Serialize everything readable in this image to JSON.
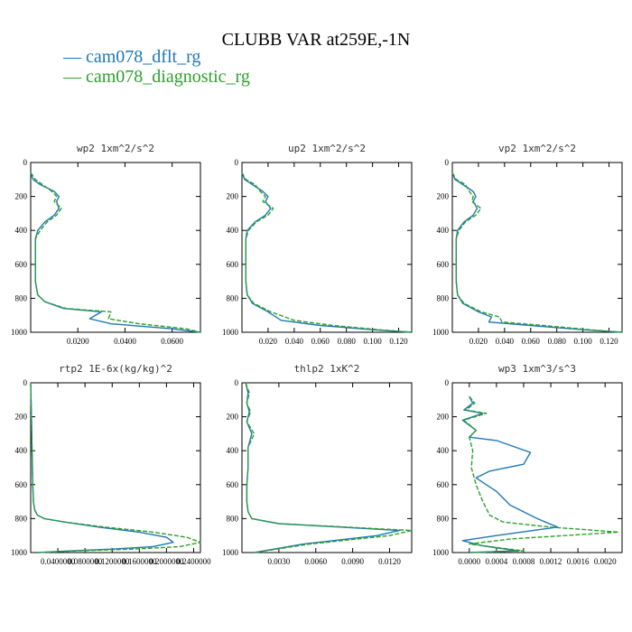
{
  "figure_title": "CLUBB VAR at259E,-1N",
  "colors": {
    "dflt": "#1f77b4",
    "diagnostic": "#2ca02c"
  },
  "legend": [
    {
      "name": "cam078_dflt_rg",
      "color": "#1f77b4",
      "style": "solid",
      "glyph": "—"
    },
    {
      "name": "cam078_diagnostic_rg",
      "color": "#2ca02c",
      "style": "dashed",
      "glyph": "—"
    }
  ],
  "chart_data": [
    {
      "type": "line",
      "title": "wp2   1xm^2/s^2",
      "xlim": [
        0,
        0.072
      ],
      "ylim": [
        1000,
        0
      ],
      "xticks": [
        0.02,
        0.04,
        0.06
      ],
      "xticklabels": [
        "0.0200",
        "0.0400",
        "0.0600"
      ],
      "yticks": [
        0,
        200,
        400,
        600,
        800,
        1000
      ],
      "series": [
        {
          "name": "cam078_dflt_rg",
          "x": [
            0,
            0.001,
            0.004,
            0.01,
            0.012,
            0.011,
            0.012,
            0.01,
            0.006,
            0.003,
            0.002,
            0.002,
            0.002,
            0.002,
            0.003,
            0.006,
            0.014,
            0.03,
            0.025,
            0.034,
            0.06,
            0.072
          ],
          "y": [
            60,
            100,
            130,
            170,
            200,
            230,
            270,
            310,
            350,
            400,
            450,
            500,
            600,
            700,
            780,
            820,
            860,
            880,
            920,
            950,
            980,
            1000
          ]
        },
        {
          "name": "cam078_diagnostic_rg",
          "x": [
            0,
            0.002,
            0.005,
            0.009,
            0.011,
            0.01,
            0.013,
            0.011,
            0.007,
            0.004,
            0.002,
            0.002,
            0.002,
            0.002,
            0.003,
            0.006,
            0.015,
            0.034,
            0.033,
            0.046,
            0.066,
            0.072
          ],
          "y": [
            60,
            100,
            130,
            170,
            200,
            230,
            270,
            310,
            350,
            400,
            450,
            500,
            600,
            700,
            780,
            820,
            860,
            880,
            920,
            950,
            980,
            1000
          ]
        }
      ]
    },
    {
      "type": "line",
      "title": "up2   1xm^2/s^2",
      "xlim": [
        0,
        0.13
      ],
      "ylim": [
        1000,
        0
      ],
      "xticks": [
        0.02,
        0.04,
        0.06,
        0.08,
        0.1,
        0.12
      ],
      "xticklabels": [
        "0.020",
        "0.040",
        "0.060",
        "0.080",
        "0.100",
        "0.120"
      ],
      "yticks": [
        0,
        200,
        400,
        600,
        800,
        1000
      ],
      "series": [
        {
          "name": "cam078_dflt_rg",
          "x": [
            0,
            0.002,
            0.008,
            0.016,
            0.02,
            0.018,
            0.022,
            0.018,
            0.01,
            0.004,
            0.003,
            0.003,
            0.003,
            0.003,
            0.004,
            0.008,
            0.02,
            0.03,
            0.06,
            0.1,
            0.13
          ],
          "y": [
            60,
            100,
            130,
            170,
            200,
            230,
            270,
            310,
            350,
            400,
            450,
            500,
            600,
            700,
            780,
            830,
            880,
            930,
            960,
            985,
            1000
          ]
        },
        {
          "name": "cam078_diagnostic_rg",
          "x": [
            0,
            0.003,
            0.01,
            0.014,
            0.018,
            0.016,
            0.024,
            0.02,
            0.011,
            0.005,
            0.003,
            0.003,
            0.003,
            0.003,
            0.004,
            0.009,
            0.022,
            0.04,
            0.07,
            0.105,
            0.13
          ],
          "y": [
            60,
            100,
            130,
            170,
            200,
            230,
            270,
            310,
            350,
            400,
            450,
            500,
            600,
            700,
            780,
            830,
            880,
            930,
            960,
            985,
            1000
          ]
        }
      ]
    },
    {
      "type": "line",
      "title": "vp2   1xm^2/s^2",
      "xlim": [
        0,
        0.13
      ],
      "ylim": [
        1000,
        0
      ],
      "xticks": [
        0.02,
        0.04,
        0.06,
        0.08,
        0.1,
        0.12
      ],
      "xticklabels": [
        "0.020",
        "0.040",
        "0.060",
        "0.080",
        "0.100",
        "0.120"
      ],
      "yticks": [
        0,
        200,
        400,
        600,
        800,
        1000
      ],
      "series": [
        {
          "name": "cam078_dflt_rg",
          "x": [
            0,
            0.002,
            0.008,
            0.016,
            0.018,
            0.016,
            0.019,
            0.016,
            0.009,
            0.004,
            0.003,
            0.003,
            0.003,
            0.003,
            0.004,
            0.008,
            0.02,
            0.03,
            0.028,
            0.06,
            0.1,
            0.13
          ],
          "y": [
            60,
            100,
            130,
            170,
            200,
            230,
            270,
            310,
            350,
            400,
            450,
            500,
            600,
            700,
            780,
            830,
            880,
            910,
            940,
            960,
            985,
            1000
          ]
        },
        {
          "name": "cam078_diagnostic_rg",
          "x": [
            0,
            0.003,
            0.01,
            0.013,
            0.016,
            0.015,
            0.022,
            0.018,
            0.01,
            0.005,
            0.003,
            0.003,
            0.003,
            0.003,
            0.004,
            0.009,
            0.022,
            0.036,
            0.038,
            0.07,
            0.105,
            0.13
          ],
          "y": [
            60,
            100,
            130,
            170,
            200,
            230,
            270,
            310,
            350,
            400,
            450,
            500,
            600,
            700,
            780,
            830,
            880,
            910,
            940,
            960,
            985,
            1000
          ]
        }
      ]
    },
    {
      "type": "line",
      "title": "rtp2   1E-6x(kg/kg)^2",
      "xlim": [
        0,
        0.25
      ],
      "ylim": [
        1000,
        0
      ],
      "xticks": [
        0.04,
        0.08,
        0.12,
        0.16,
        0.2,
        0.24
      ],
      "xticklabels": [
        "0.0400000",
        "0.0800000",
        "0.1200000",
        "0.1600000",
        "0.2000000",
        "0.2400000"
      ],
      "yticks": [
        0,
        200,
        400,
        600,
        800,
        1000
      ],
      "series": [
        {
          "name": "cam078_dflt_rg",
          "x": [
            0,
            0.001,
            0.002,
            0.003,
            0.004,
            0.006,
            0.01,
            0.02,
            0.05,
            0.1,
            0.16,
            0.2,
            0.21,
            0.18,
            0.12,
            0.06,
            0.01
          ],
          "y": [
            0,
            200,
            400,
            600,
            700,
            750,
            780,
            800,
            820,
            850,
            880,
            910,
            940,
            965,
            980,
            990,
            1000
          ]
        },
        {
          "name": "cam078_diagnostic_rg",
          "x": [
            0,
            0.001,
            0.002,
            0.003,
            0.004,
            0.006,
            0.01,
            0.02,
            0.05,
            0.11,
            0.18,
            0.23,
            0.25,
            0.22,
            0.15,
            0.07,
            0.01
          ],
          "y": [
            0,
            200,
            400,
            600,
            700,
            750,
            780,
            800,
            820,
            850,
            880,
            910,
            940,
            965,
            980,
            990,
            1000
          ]
        }
      ]
    },
    {
      "type": "line",
      "title": "thlp2   1xK^2",
      "xlim": [
        0,
        0.0138
      ],
      "ylim": [
        1000,
        0
      ],
      "xticks": [
        0.003,
        0.006,
        0.009,
        0.012
      ],
      "xticklabels": [
        "0.0030",
        "0.0060",
        "0.0090",
        "0.0120"
      ],
      "yticks": [
        0,
        200,
        400,
        600,
        800,
        1000
      ],
      "series": [
        {
          "name": "cam078_dflt_rg",
          "x": [
            0.0003,
            0.0005,
            0.0004,
            0.0006,
            0.0004,
            0.0008,
            0.0005,
            0.0005,
            0.0004,
            0.0004,
            0.0005,
            0.0008,
            0.003,
            0.008,
            0.0128,
            0.011,
            0.005,
            0.001
          ],
          "y": [
            0,
            60,
            120,
            170,
            230,
            300,
            380,
            500,
            600,
            700,
            760,
            800,
            830,
            850,
            870,
            900,
            950,
            1000
          ]
        },
        {
          "name": "cam078_diagnostic_rg",
          "x": [
            0.0003,
            0.0006,
            0.0004,
            0.0007,
            0.0004,
            0.001,
            0.0005,
            0.0005,
            0.0004,
            0.0004,
            0.0005,
            0.0008,
            0.003,
            0.0085,
            0.0138,
            0.012,
            0.0055,
            0.001
          ],
          "y": [
            0,
            60,
            120,
            170,
            230,
            300,
            380,
            500,
            600,
            700,
            760,
            800,
            830,
            850,
            870,
            900,
            950,
            1000
          ]
        }
      ]
    },
    {
      "type": "line",
      "title": "wp3   1xm^3/s^3",
      "xlim": [
        -0.00025,
        0.00225
      ],
      "ylim": [
        1000,
        0
      ],
      "xticks": [
        0,
        0.0004,
        0.0008,
        0.0012,
        0.0016,
        0.002
      ],
      "xticklabels": [
        "0.0000",
        "0.0004",
        "0.0008",
        "0.0012",
        "0.0016",
        "0.0020"
      ],
      "yticks": [
        0,
        200,
        400,
        600,
        800,
        1000
      ],
      "series": [
        {
          "name": "cam078_dflt_rg",
          "x": [
            0,
            5e-05,
            -8e-05,
            0.0002,
            -0.0001,
            0.0001,
            0,
            0.0004,
            0.0009,
            0.0008,
            0.0003,
            0.0001,
            0.0004,
            0.0006,
            0.001,
            0.0013,
            0.0004,
            -0.0001,
            0.0002,
            0.0007,
            0
          ],
          "y": [
            80,
            120,
            160,
            180,
            220,
            280,
            320,
            340,
            410,
            480,
            520,
            560,
            640,
            720,
            800,
            850,
            900,
            930,
            960,
            990,
            1000
          ]
        },
        {
          "name": "cam078_diagnostic_rg",
          "x": [
            0,
            8e-05,
            -5e-05,
            0.00025,
            -8e-05,
            0.0001,
            0,
            5e-05,
            3e-05,
            0.0001,
            0.0002,
            0.0003,
            0.0005,
            0.0012,
            0.0022,
            0.0006,
            0,
            0.0005,
            0.0008,
            0
          ],
          "y": [
            80,
            120,
            160,
            180,
            220,
            280,
            320,
            400,
            500,
            600,
            700,
            780,
            820,
            850,
            880,
            920,
            950,
            975,
            990,
            1000
          ]
        }
      ]
    }
  ]
}
